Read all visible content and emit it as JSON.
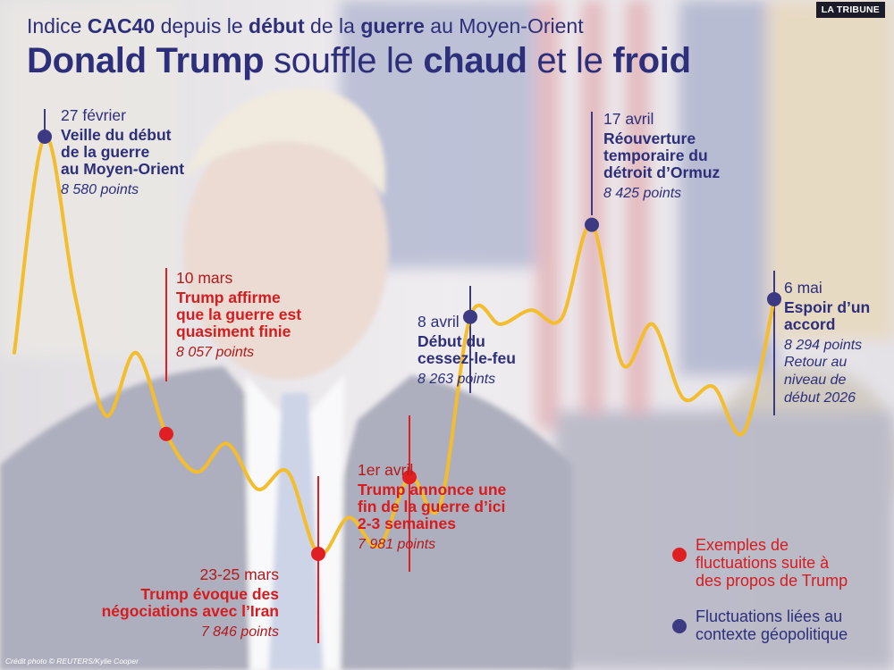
{
  "header": {
    "subtitle_pre": "Indice ",
    "subtitle_b1": "CAC40",
    "subtitle_mid1": " depuis le ",
    "subtitle_b2": "début",
    "subtitle_mid2": " de la ",
    "subtitle_b3": "guerre",
    "subtitle_post": " au Moyen-Orient",
    "title_b1": "Donald Trump",
    "title_mid1": " souffle le ",
    "title_b2": "chaud",
    "title_mid2": " et le ",
    "title_b3": "froid",
    "brand": "LA TRIBUNE",
    "credit": "Crédit photo © REUTERS/Kylie Cooper"
  },
  "colors": {
    "line": "#f3bd2e",
    "blue": "#3b3a83",
    "red": "#e01f22",
    "text_blue": "#2e2f7a"
  },
  "chart_data": {
    "type": "line",
    "title": "Donald Trump souffle le chaud et le froid",
    "subtitle": "Indice CAC40 depuis le début de la guerre au Moyen-Orient",
    "xlabel": "",
    "ylabel": "",
    "series": [
      {
        "values": [
          8200,
          8580,
          8300,
          8090,
          8200,
          8057,
          7990,
          8040,
          7960,
          7990,
          7846,
          7910,
          7860,
          7981,
          7930,
          8263,
          8250,
          8275,
          8260,
          8425,
          8180,
          8250,
          8120,
          8140,
          8060,
          8294
        ]
      }
    ],
    "annotations": [
      {
        "date": "27 février",
        "label": "Veille du début de la guerre au Moyen-Orient",
        "label_lines": [
          "Veille du début",
          "de la guerre",
          "au Moyen-Orient"
        ],
        "points": "8 580 points",
        "value": 8580,
        "kind": "geopolitique"
      },
      {
        "date": "10 mars",
        "label": "Trump affirme que la guerre est quasiment finie",
        "label_lines": [
          "Trump affirme",
          "que la guerre est",
          "quasiment finie"
        ],
        "points": "8 057 points",
        "value": 8057,
        "kind": "trump"
      },
      {
        "date": "23-25 mars",
        "label": "Trump évoque des négociations avec l’Iran",
        "label_lines": [
          "Trump évoque des",
          "négociations avec l’Iran"
        ],
        "points": "7 846 points",
        "value": 7846,
        "kind": "trump"
      },
      {
        "date": "1er avril",
        "label": "Trump annonce une fin de la guerre d’ici 2-3 semaines",
        "label_lines": [
          "Trump annonce une",
          "fin de la guerre d’ici",
          "2-3 semaines"
        ],
        "points": "7 981 points",
        "value": 7981,
        "kind": "trump"
      },
      {
        "date": "8 avril",
        "label": "Début du cessez-le-feu",
        "label_lines": [
          "Début du",
          "cessez-le-feu"
        ],
        "points": "8 263 points",
        "value": 8263,
        "kind": "geopolitique"
      },
      {
        "date": "17 avril",
        "label": "Réouverture temporaire du détroit d’Ormuz",
        "label_lines": [
          "Réouverture",
          "temporaire du",
          "détroit d’Ormuz"
        ],
        "points": "8 425 points",
        "value": 8425,
        "kind": "geopolitique"
      },
      {
        "date": "6 mai",
        "label": "Espoir d’un accord",
        "label_lines": [
          "Espoir d’un",
          "accord"
        ],
        "points": "8 294 points",
        "value": 8294,
        "kind": "geopolitique",
        "note_lines": [
          "Retour au",
          "niveau de",
          "début 2026"
        ]
      }
    ],
    "legend": [
      {
        "text_lines": [
          "Exemples de",
          "fluctuations suite à",
          "des propos de Trump"
        ],
        "kind": "trump"
      },
      {
        "text_lines": [
          "Fluctuations liées au",
          "contexte géopolitique"
        ],
        "kind": "geopolitique"
      }
    ],
    "legend_position": "bottom-right",
    "grid": false
  }
}
